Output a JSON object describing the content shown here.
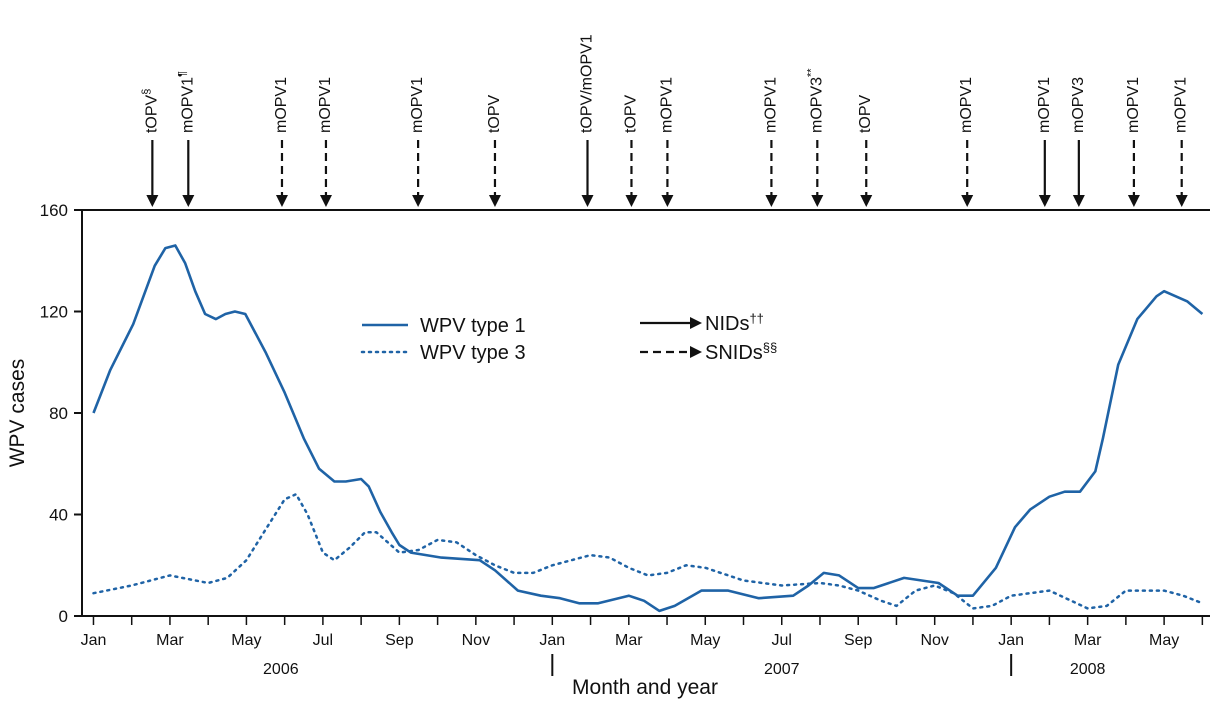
{
  "chart_data": {
    "type": "line",
    "xlabel": "Month and year",
    "ylabel": "WPV cases",
    "xlim": [
      -0.3,
      29.2
    ],
    "ylim": [
      0,
      160
    ],
    "yticks": [
      0,
      40,
      80,
      120,
      160
    ],
    "xticks": [
      {
        "value": 0,
        "label": "Jan"
      },
      {
        "value": 2,
        "label": "Mar"
      },
      {
        "value": 4,
        "label": "May"
      },
      {
        "value": 6,
        "label": "Jul"
      },
      {
        "value": 8,
        "label": "Sep"
      },
      {
        "value": 10,
        "label": "Nov"
      },
      {
        "value": 12,
        "label": "Jan"
      },
      {
        "value": 14,
        "label": "Mar"
      },
      {
        "value": 16,
        "label": "May"
      },
      {
        "value": 18,
        "label": "Jul"
      },
      {
        "value": 20,
        "label": "Sep"
      },
      {
        "value": 22,
        "label": "Nov"
      },
      {
        "value": 24,
        "label": "Jan"
      },
      {
        "value": 26,
        "label": "Mar"
      },
      {
        "value": 28,
        "label": "May"
      }
    ],
    "xminor": [
      1,
      3,
      5,
      7,
      9,
      11,
      13,
      15,
      17,
      19,
      21,
      23,
      25,
      27,
      29
    ],
    "xgroups": [
      {
        "label": "2006",
        "at": 4.9
      },
      {
        "label": "2007",
        "at": 18
      },
      {
        "label": "2008",
        "at": 26
      }
    ],
    "xdividers": [
      12,
      24
    ],
    "series": [
      {
        "name": "WPV type 1",
        "color": "#1f63a6",
        "dash": "solid",
        "x": [
          0,
          0.44,
          1.04,
          1.6,
          1.88,
          2.14,
          2.4,
          2.66,
          2.92,
          3.2,
          3.45,
          3.7,
          3.97,
          4.5,
          5.0,
          5.5,
          5.9,
          6.3,
          6.6,
          7.0,
          7.2,
          7.5,
          7.8,
          8.0,
          8.3,
          9.1,
          10.1,
          10.5,
          11.1,
          11.7,
          12.2,
          12.7,
          13.2,
          14.0,
          14.4,
          14.8,
          15.2,
          15.9,
          16.6,
          17.4,
          18.3,
          18.7,
          19.1,
          19.5,
          20.0,
          20.4,
          21.2,
          22.1,
          22.6,
          23.0,
          23.6,
          24.1,
          24.5,
          25.0,
          25.4,
          25.8,
          26.2,
          26.4,
          26.8,
          27.3,
          27.8,
          28.0,
          28.6,
          29.0
        ],
        "values": [
          80,
          97,
          115,
          138,
          145,
          146,
          139,
          128,
          119,
          117,
          119,
          120,
          119,
          104,
          88,
          70,
          58,
          53,
          53,
          54,
          51,
          41,
          33,
          28,
          25,
          23,
          22,
          18,
          10,
          8,
          7,
          5,
          5,
          8,
          6,
          2,
          4,
          10,
          10,
          7,
          8,
          12,
          17,
          16,
          11,
          11,
          15,
          13,
          8,
          8,
          19,
          35,
          42,
          47,
          49,
          49,
          57,
          70,
          99,
          117,
          126,
          128,
          124,
          119
        ]
      },
      {
        "name": "WPV type 3",
        "color": "#1f63a6",
        "dash": "dotted",
        "x": [
          0,
          1,
          2,
          3,
          3.5,
          4,
          4.5,
          5.0,
          5.3,
          5.6,
          6,
          6.3,
          6.7,
          7.1,
          7.4,
          8,
          8.5,
          9,
          9.5,
          10,
          10.5,
          11,
          11.5,
          12,
          13,
          13.5,
          14,
          14.5,
          15,
          15.5,
          16,
          17,
          18,
          19,
          19.5,
          20,
          20.6,
          21,
          21.5,
          22,
          22.5,
          23,
          23.5,
          24,
          25,
          26,
          26.5,
          27,
          28,
          28.5,
          29
        ],
        "values": [
          9,
          12,
          16,
          13,
          15,
          22,
          34,
          46,
          48,
          40,
          25,
          22,
          27,
          33,
          33,
          25,
          26,
          30,
          29,
          24,
          20,
          17,
          17,
          20,
          24,
          23,
          19,
          16,
          17,
          20,
          19,
          14,
          12,
          13,
          12,
          10,
          6,
          4,
          10,
          12,
          9,
          3,
          4,
          8,
          10,
          3,
          4,
          10,
          10,
          8,
          5
        ]
      }
    ],
    "campaign_types": [
      {
        "name": "NIDs",
        "note": "††",
        "style": "solid"
      },
      {
        "name": "SNIDs",
        "note": "§§",
        "style": "dashed"
      }
    ],
    "campaigns": [
      {
        "label": "tOPV",
        "note": "§",
        "at": 1.54,
        "style": "solid"
      },
      {
        "label": "mOPV1",
        "note": "¶",
        "at": 2.48,
        "style": "solid"
      },
      {
        "label": "mOPV1",
        "at": 4.93,
        "style": "dashed"
      },
      {
        "label": "mOPV1",
        "at": 6.08,
        "style": "dashed"
      },
      {
        "label": "mOPV1",
        "at": 8.49,
        "style": "dashed"
      },
      {
        "label": "tOPV",
        "at": 10.5,
        "style": "dashed"
      },
      {
        "label": "tOPV/mOPV1",
        "at": 12.92,
        "style": "solid"
      },
      {
        "label": "tOPV",
        "at": 14.07,
        "style": "dashed"
      },
      {
        "label": "mOPV1",
        "at": 15.01,
        "style": "dashed"
      },
      {
        "label": "mOPV1",
        "at": 17.73,
        "style": "dashed"
      },
      {
        "label": "mOPV3",
        "note": "**",
        "at": 18.93,
        "style": "dashed"
      },
      {
        "label": "tOPV",
        "at": 20.21,
        "style": "dashed"
      },
      {
        "label": "mOPV1",
        "at": 22.85,
        "style": "dashed"
      },
      {
        "label": "mOPV1",
        "at": 24.88,
        "style": "solid"
      },
      {
        "label": "mOPV3",
        "at": 25.77,
        "style": "solid"
      },
      {
        "label": "mOPV1",
        "at": 27.21,
        "style": "dashed"
      },
      {
        "label": "mOPV1",
        "at": 28.46,
        "style": "dashed"
      }
    ]
  }
}
